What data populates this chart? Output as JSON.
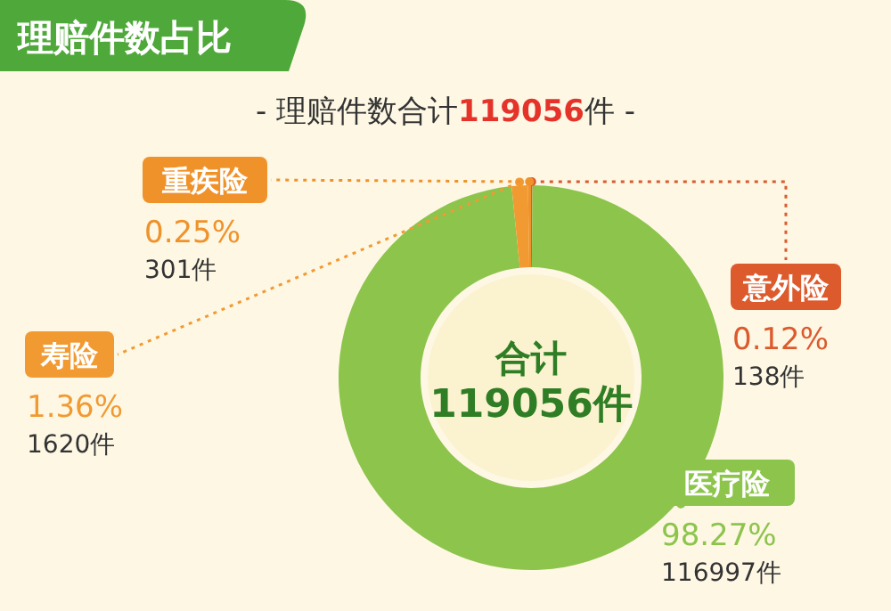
{
  "chart_data": {
    "type": "donut",
    "title": "理赔件数占比",
    "subtitle": "- 理赔件数合计119056件 -",
    "categories": [
      "意外险",
      "医疗险",
      "寿险",
      "重疾险"
    ],
    "values": [
      138,
      116997,
      1620,
      301
    ],
    "colors": [
      "#dc5a2c",
      "#8cc44c",
      "#f29a32",
      "#f0922a"
    ],
    "value_labels": [
      "0.12%\n138件",
      "98.27%\n116997件",
      "1.36%\n1620件",
      "0.25%\n301件"
    ],
    "annotations": [
      "合计\n119056件"
    ]
  }
}
